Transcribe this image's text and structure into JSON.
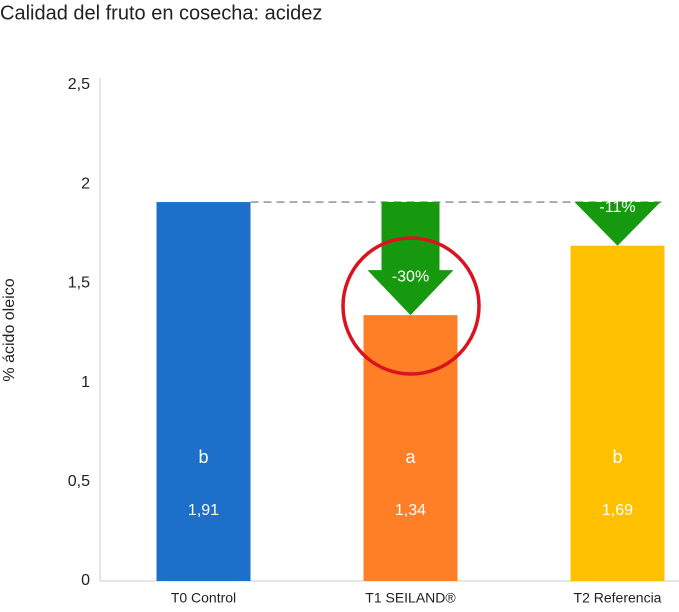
{
  "chart_data": {
    "type": "bar",
    "title": "Calidad del fruto en cosecha: acidez",
    "y_label": "% ácido oleico",
    "categories": [
      "T0 Control",
      "T1 SEILAND®",
      "T2 Referencia"
    ],
    "values": [
      1.91,
      1.34,
      1.69
    ],
    "value_labels": [
      "1,91",
      "1,34",
      "1,69"
    ],
    "colors": [
      "#1c70c9",
      "#ff7f26",
      "#ffc000"
    ],
    "significance_letters": [
      "b",
      "a",
      "b"
    ],
    "reduction_labels": [
      null,
      "-30%",
      "-11%"
    ],
    "arrow_color": "#17990f",
    "ylim": [
      0,
      2.5
    ],
    "yticks": [
      0,
      {
        "value": 0.5,
        "label": "0,5"
      },
      1,
      {
        "value": 1.5,
        "label": "1,5"
      },
      2,
      {
        "value": 2.5,
        "label": "2,5"
      }
    ]
  }
}
